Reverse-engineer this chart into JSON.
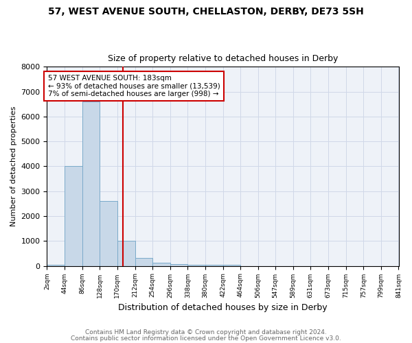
{
  "title": "57, WEST AVENUE SOUTH, CHELLASTON, DERBY, DE73 5SH",
  "subtitle": "Size of property relative to detached houses in Derby",
  "xlabel": "Distribution of detached houses by size in Derby",
  "ylabel": "Number of detached properties",
  "bar_values": [
    50,
    4000,
    6600,
    2600,
    1000,
    320,
    120,
    80,
    50,
    30,
    55,
    0,
    0,
    0,
    0,
    0,
    0,
    0,
    0,
    0
  ],
  "bin_edges": [
    2,
    44,
    86,
    128,
    170,
    212,
    254,
    296,
    338,
    380,
    422,
    464,
    506,
    547,
    589,
    631,
    673,
    715,
    757,
    799,
    841
  ],
  "tick_labels": [
    "2sqm",
    "44sqm",
    "86sqm",
    "128sqm",
    "170sqm",
    "212sqm",
    "254sqm",
    "296sqm",
    "338sqm",
    "380sqm",
    "422sqm",
    "464sqm",
    "506sqm",
    "547sqm",
    "589sqm",
    "631sqm",
    "673sqm",
    "715sqm",
    "757sqm",
    "799sqm",
    "841sqm"
  ],
  "bar_color": "#c8d8e8",
  "bar_edgecolor": "#7aaaca",
  "red_line_x": 183,
  "ylim": [
    0,
    8000
  ],
  "yticks": [
    0,
    1000,
    2000,
    3000,
    4000,
    5000,
    6000,
    7000,
    8000
  ],
  "annotation_text": "57 WEST AVENUE SOUTH: 183sqm\n← 93% of detached houses are smaller (13,539)\n7% of semi-detached houses are larger (998) →",
  "annotation_box_color": "#ffffff",
  "annotation_box_edgecolor": "#cc0000",
  "footer1": "Contains HM Land Registry data © Crown copyright and database right 2024.",
  "footer2": "Contains public sector information licensed under the Open Government Licence v3.0.",
  "grid_color": "#d0d8e8",
  "background_color": "#eef2f8",
  "title_fontsize": 10,
  "subtitle_fontsize": 9,
  "xlabel_fontsize": 9,
  "ylabel_fontsize": 8,
  "annotation_fontsize": 7.5,
  "tick_fontsize": 6.5,
  "ytick_fontsize": 8,
  "footer_fontsize": 6.5
}
